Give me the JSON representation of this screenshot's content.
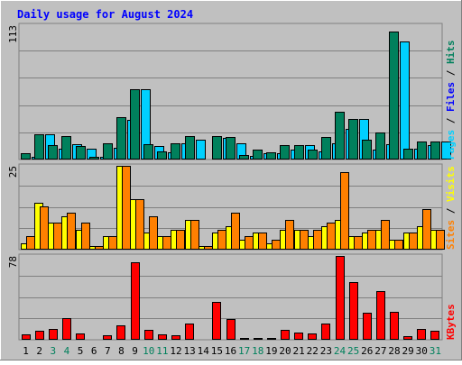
{
  "colors": {
    "background": "#C0C0C0",
    "frame_light": "#FFFFFF",
    "frame_dark": "#808080",
    "plot_bg": "#C0C0C0",
    "grid": "#808080",
    "title": "#0000FF",
    "hits": "#00805C",
    "files": "#0000FF",
    "pages": "#00D0FF",
    "visits": "#FFFF00",
    "sites": "#FF8000",
    "kbytes": "#FF0000",
    "weekend_day": "#00805C",
    "weekday": "#000000"
  },
  "chart_data": [
    {
      "type": "bar",
      "title": "Daily usage for August 2024",
      "ylabel": "Pages / Files / Hits",
      "ylim": [
        0,
        113
      ],
      "y_tick_labels": [
        "113"
      ],
      "categories": [
        "1",
        "2",
        "3",
        "4",
        "5",
        "6",
        "7",
        "8",
        "9",
        "10",
        "11",
        "12",
        "13",
        "14",
        "15",
        "16",
        "17",
        "18",
        "19",
        "20",
        "21",
        "22",
        "23",
        "24",
        "25",
        "26",
        "27",
        "28",
        "29",
        "30",
        "31"
      ],
      "series": [
        {
          "name": "Hits",
          "values": [
            5,
            21,
            12,
            20,
            11,
            2,
            14,
            36,
            59,
            13,
            7,
            14,
            20,
            1,
            20,
            19,
            4,
            8,
            6,
            12,
            12,
            8,
            19,
            40,
            34,
            17,
            23,
            108,
            9,
            15,
            15
          ]
        },
        {
          "name": "Files",
          "values": [
            0,
            0,
            0,
            0,
            0,
            0,
            0,
            0,
            0,
            0,
            0,
            0,
            0,
            0,
            0,
            0,
            0,
            0,
            0,
            0,
            0,
            0,
            0,
            0,
            0,
            0,
            0,
            0,
            0,
            0,
            0
          ]
        },
        {
          "name": "Pages",
          "values": [
            2,
            21,
            9,
            13,
            9,
            2,
            10,
            33,
            59,
            11,
            6,
            14,
            17,
            1,
            18,
            14,
            3,
            5,
            5,
            8,
            12,
            7,
            14,
            26,
            34,
            8,
            13,
            99,
            9,
            12,
            15
          ]
        }
      ]
    },
    {
      "type": "bar",
      "ylabel": "Sites / Visits",
      "ylim": [
        0,
        25
      ],
      "y_tick_labels": [
        "25"
      ],
      "categories": [
        "1",
        "2",
        "3",
        "4",
        "5",
        "6",
        "7",
        "8",
        "9",
        "10",
        "11",
        "12",
        "13",
        "14",
        "15",
        "16",
        "17",
        "18",
        "19",
        "20",
        "21",
        "22",
        "23",
        "24",
        "25",
        "26",
        "27",
        "28",
        "29",
        "30",
        "31"
      ],
      "series": [
        {
          "name": "Visits",
          "values": [
            2,
            14,
            8,
            10,
            6,
            1,
            4,
            25,
            15,
            5,
            4,
            6,
            9,
            1,
            5,
            7,
            3,
            5,
            2,
            6,
            6,
            4,
            7,
            9,
            4,
            5,
            6,
            3,
            5,
            7,
            6
          ]
        },
        {
          "name": "Sites",
          "values": [
            4,
            13,
            8,
            11,
            8,
            1,
            4,
            25,
            15,
            10,
            4,
            6,
            9,
            1,
            6,
            11,
            4,
            5,
            3,
            9,
            6,
            6,
            8,
            23,
            4,
            6,
            9,
            3,
            5,
            12,
            6
          ]
        }
      ]
    },
    {
      "type": "bar",
      "ylabel": "KBytes",
      "ylim": [
        0,
        78
      ],
      "y_tick_labels": [
        "78"
      ],
      "categories": [
        "1",
        "2",
        "3",
        "4",
        "5",
        "6",
        "7",
        "8",
        "9",
        "10",
        "11",
        "12",
        "13",
        "14",
        "15",
        "16",
        "17",
        "18",
        "19",
        "20",
        "21",
        "22",
        "23",
        "24",
        "25",
        "26",
        "27",
        "28",
        "29",
        "30",
        "31"
      ],
      "series": [
        {
          "name": "KBytes",
          "values": [
            5,
            8,
            10,
            20,
            6,
            1,
            4,
            13,
            72,
            9,
            5,
            4,
            15,
            1,
            35,
            19,
            2,
            2,
            2,
            9,
            7,
            6,
            15,
            78,
            54,
            25,
            45,
            26,
            3,
            10,
            8
          ]
        }
      ]
    }
  ],
  "days": [
    "1",
    "2",
    "3",
    "4",
    "5",
    "6",
    "7",
    "8",
    "9",
    "10",
    "11",
    "12",
    "13",
    "14",
    "15",
    "16",
    "17",
    "18",
    "19",
    "20",
    "21",
    "22",
    "23",
    "24",
    "25",
    "26",
    "27",
    "28",
    "29",
    "30",
    "31"
  ],
  "weekend_days": [
    "3",
    "4",
    "10",
    "11",
    "17",
    "18",
    "24",
    "25",
    "31"
  ]
}
